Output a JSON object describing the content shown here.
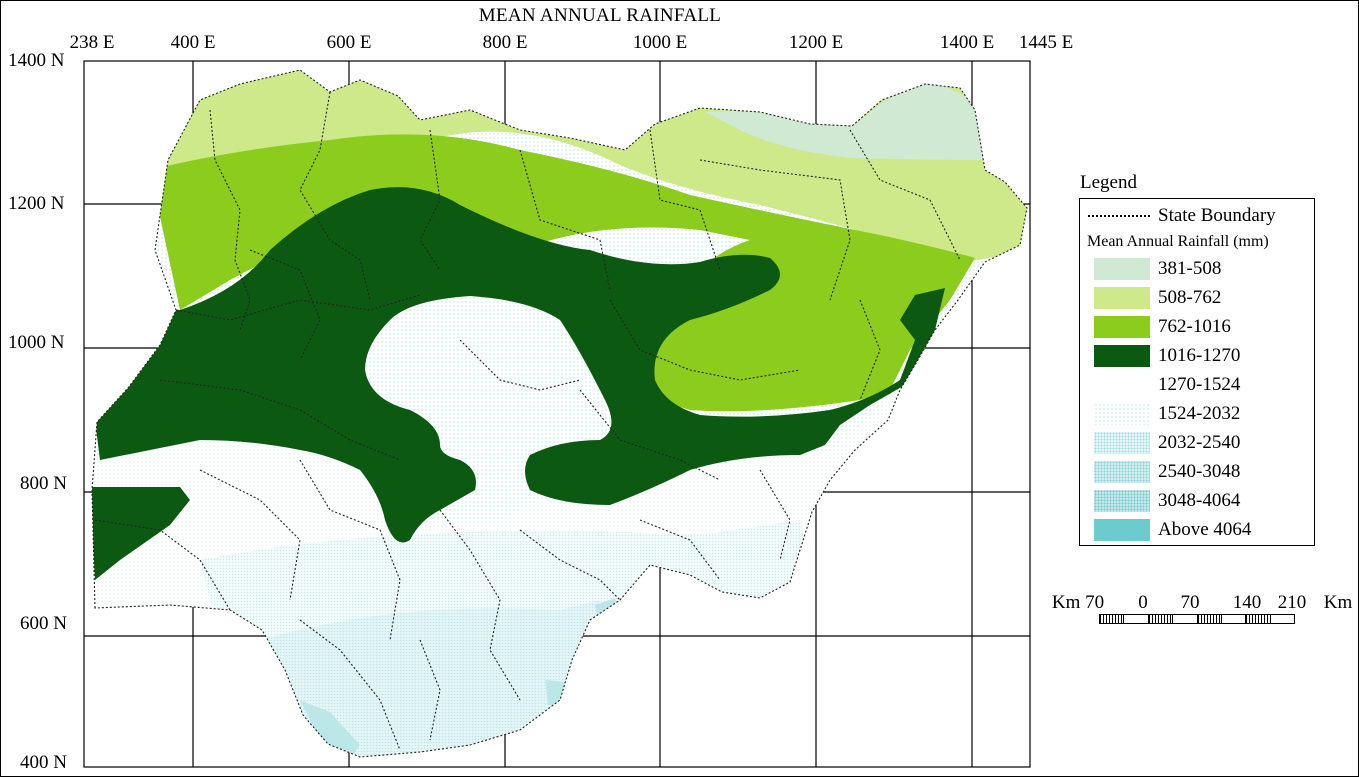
{
  "title": "MEAN ANNUAL RAINFALL",
  "longitude_labels": [
    "238 E",
    "400 E",
    "600 E",
    "800 E",
    "1000 E",
    "1200 E",
    "1400 E",
    "1445 E"
  ],
  "latitude_labels": [
    "1400 N",
    "1200 N",
    "1000 N",
    "800 N",
    "600 N",
    "400 N"
  ],
  "legend": {
    "title": "Legend",
    "boundary_label": "State Boundary",
    "subtitle": "Mean Annual Rainfall (mm)",
    "items": [
      {
        "label": "381-508",
        "color": "#cfe9d2"
      },
      {
        "label": "508-762",
        "color": "#cde98a"
      },
      {
        "label": "762-1016",
        "color": "#8ccc1d"
      },
      {
        "label": "1016-1270",
        "color": "#0c5a12"
      },
      {
        "label": "1270-1524",
        "color": "#ffffff"
      },
      {
        "label": "1524-2032",
        "color": "#e8f7f8"
      },
      {
        "label": "2032-2540",
        "color": "#d4f0f1"
      },
      {
        "label": "2540-3048",
        "color": "#c4eaec"
      },
      {
        "label": "3048-4064",
        "color": "#b0e2e5"
      },
      {
        "label": "Above 4064",
        "color": "#6ccbcd"
      }
    ]
  },
  "scale": {
    "labels": [
      "Km 70",
      "0",
      "70",
      "140",
      "210",
      "Km"
    ]
  }
}
